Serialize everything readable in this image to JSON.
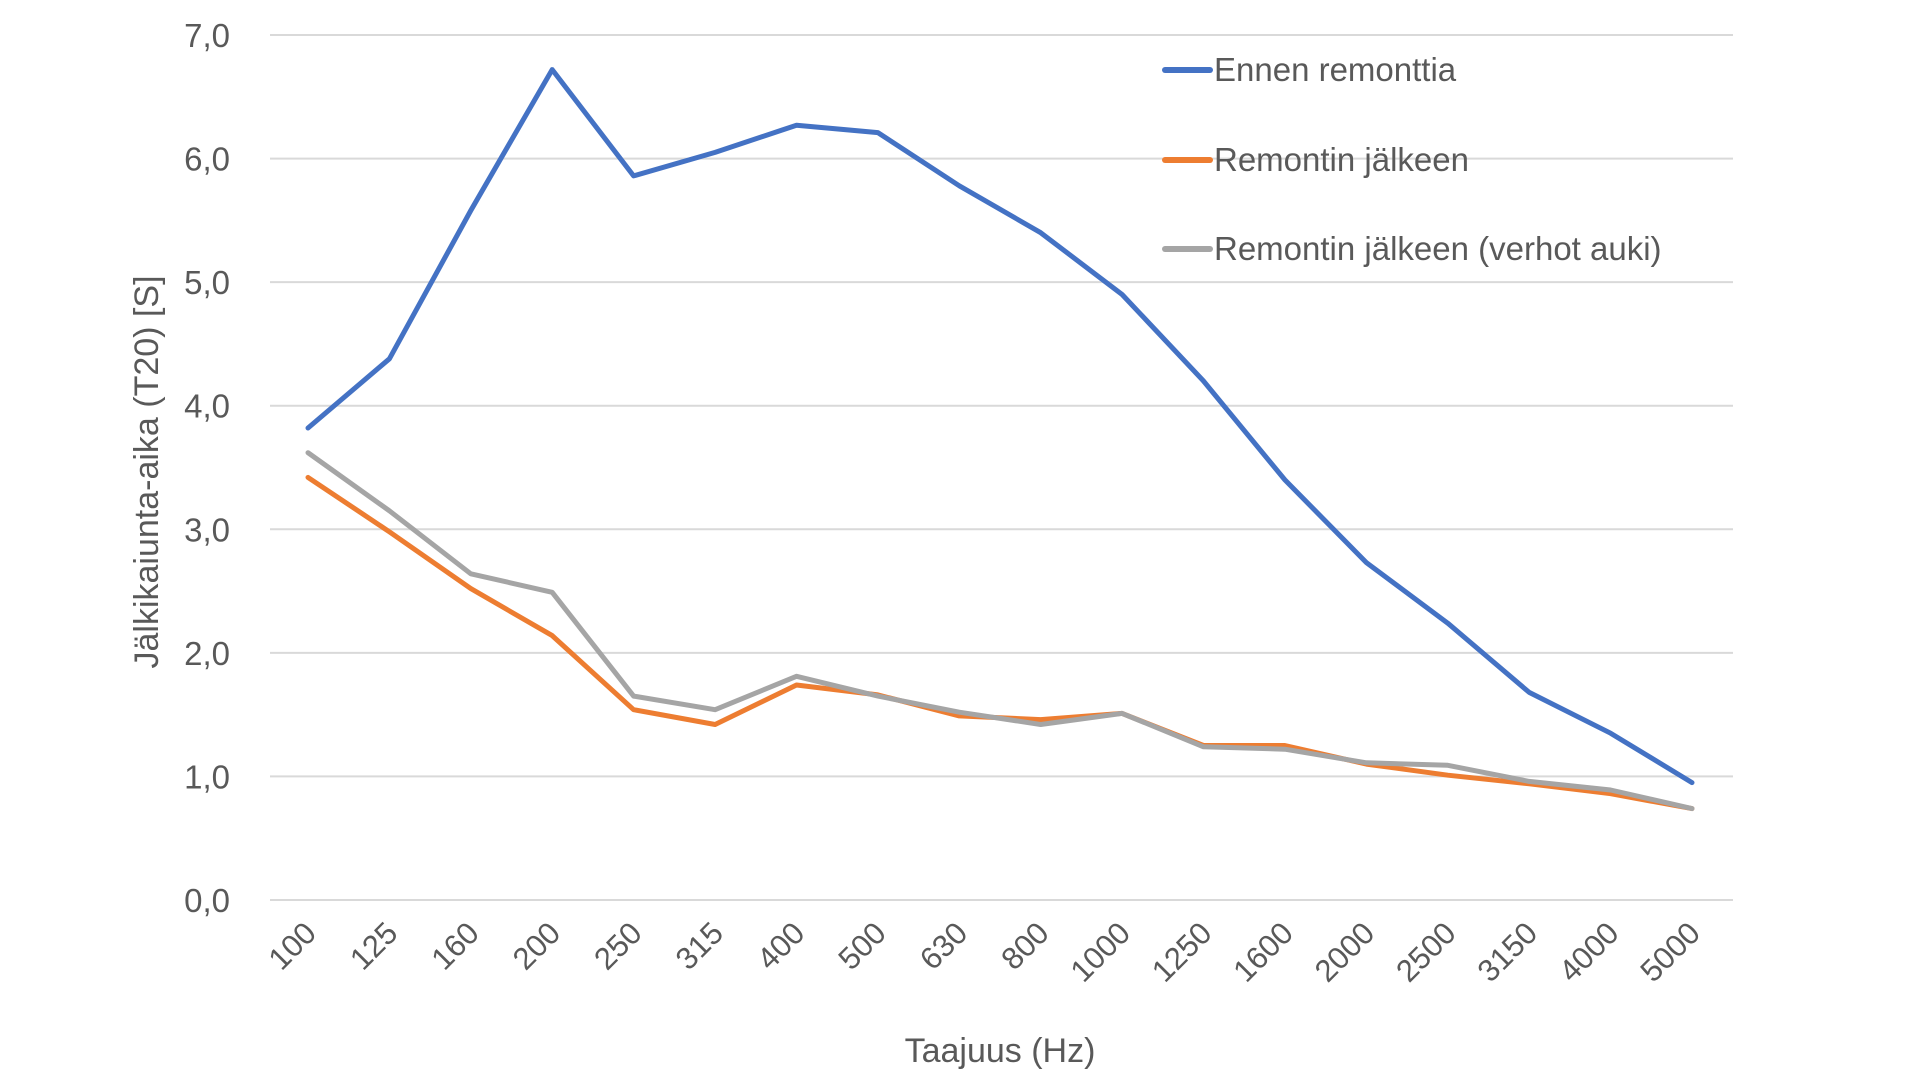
{
  "chart_data": {
    "type": "line",
    "title": "",
    "xlabel": "Taajuus (Hz)",
    "ylabel": "Jälkikaiunta-aika (T20) [S]",
    "ylim": [
      0,
      7
    ],
    "yticks": [
      "0,0",
      "1,0",
      "2,0",
      "3,0",
      "4,0",
      "5,0",
      "6,0",
      "7,0"
    ],
    "grid": true,
    "legend_position": "top-right",
    "categories": [
      "100",
      "125",
      "160",
      "200",
      "250",
      "315",
      "400",
      "500",
      "630",
      "800",
      "1000",
      "1250",
      "1600",
      "2000",
      "2500",
      "3150",
      "4000",
      "5000"
    ],
    "series": [
      {
        "name": "Ennen remonttia",
        "color": "#4472c4",
        "values": [
          3.82,
          4.38,
          5.58,
          6.72,
          5.86,
          6.05,
          6.27,
          6.21,
          5.78,
          5.4,
          4.9,
          4.2,
          3.4,
          2.73,
          2.24,
          1.68,
          1.35,
          0.95
        ]
      },
      {
        "name": "Remontin jälkeen",
        "color": "#ed7d31",
        "values": [
          3.42,
          2.98,
          2.52,
          2.14,
          1.54,
          1.42,
          1.74,
          1.66,
          1.49,
          1.46,
          1.51,
          1.25,
          1.25,
          1.1,
          1.01,
          0.94,
          0.86,
          0.74
        ]
      },
      {
        "name": "Remontin jälkeen (verhot auki)",
        "color": "#a5a5a5",
        "values": [
          3.62,
          3.15,
          2.64,
          2.49,
          1.65,
          1.54,
          1.81,
          1.65,
          1.52,
          1.42,
          1.51,
          1.24,
          1.22,
          1.11,
          1.09,
          0.96,
          0.89,
          0.74
        ]
      }
    ]
  }
}
